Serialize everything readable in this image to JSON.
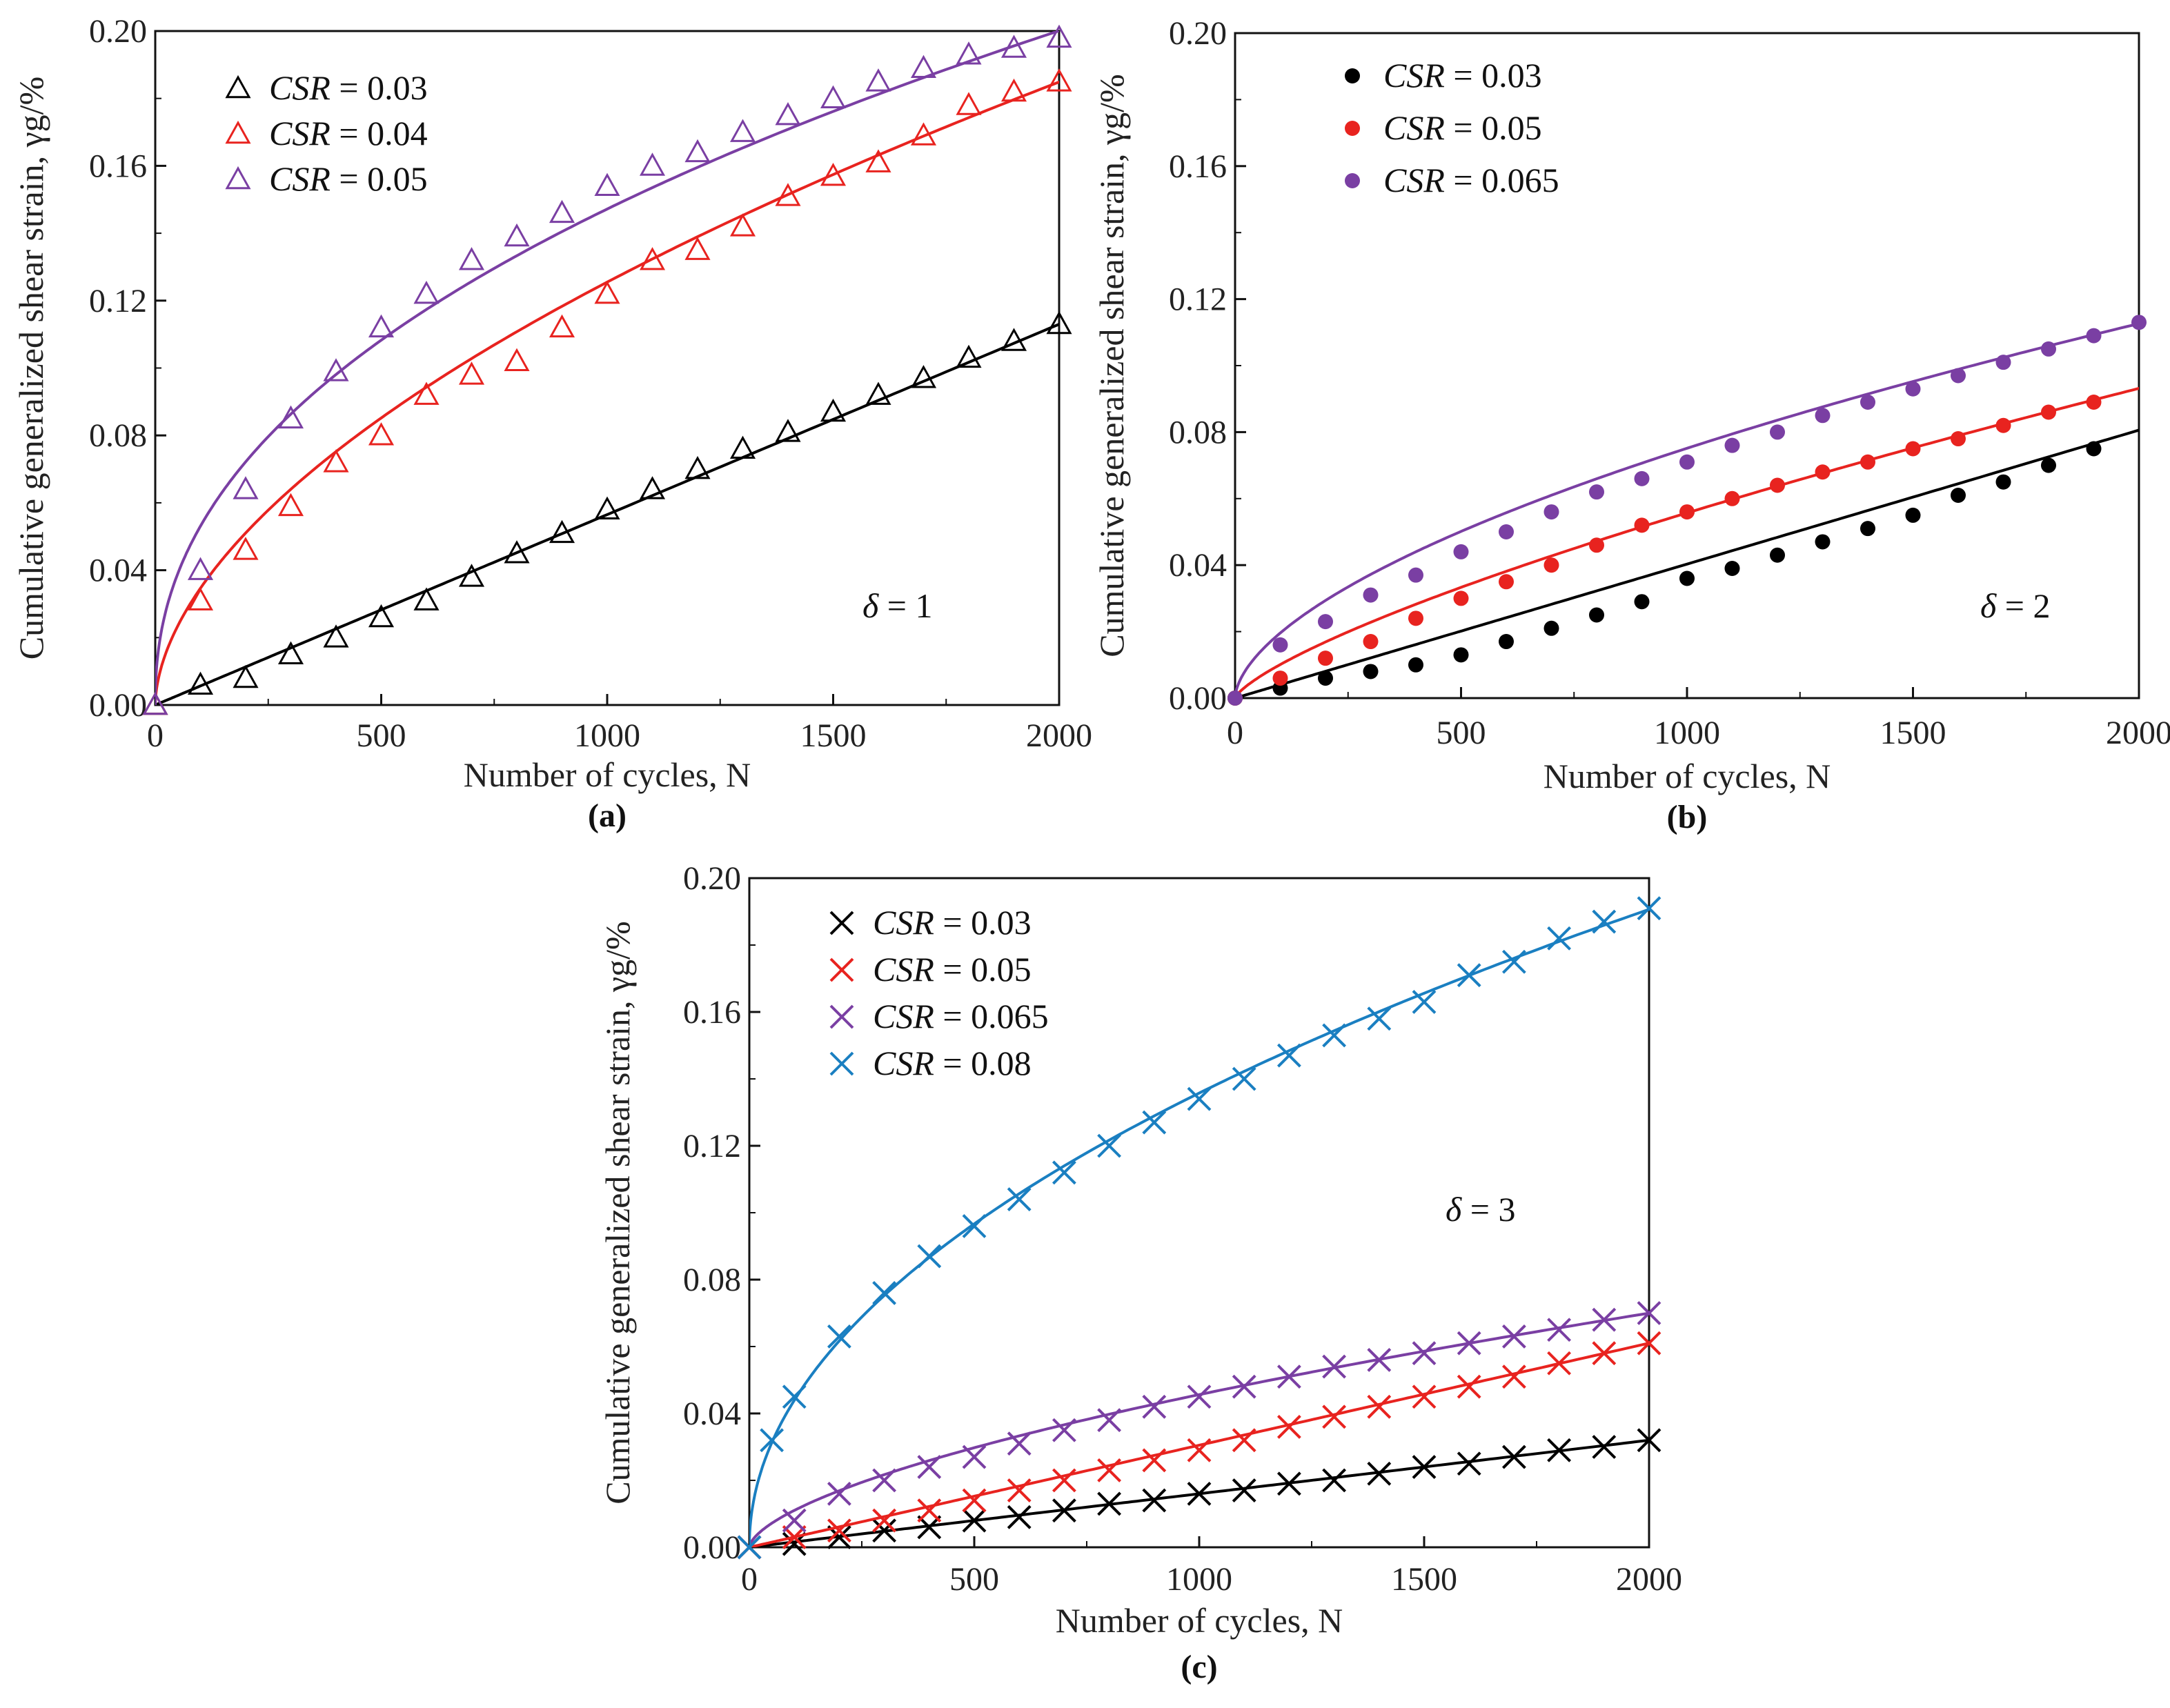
{
  "chart_data": [
    {
      "type": "scatter",
      "panel": "(a)",
      "marker": "triangle",
      "xlabel": "Number of cycles, N",
      "ylabel": "Cumulative generalized shear strain, γg/%",
      "xlim": [
        0,
        2000
      ],
      "ylim": [
        0,
        0.2
      ],
      "xticks": [
        "0",
        "500",
        "1000",
        "1500",
        "2000"
      ],
      "yticks": [
        "0.00",
        "0.04",
        "0.08",
        "0.12",
        "0.16",
        "0.20"
      ],
      "annotation": {
        "symbol": "δ",
        "text": " = 1"
      },
      "legend_position": "top-left",
      "series": [
        {
          "name": "CSR = 0.03",
          "label_var": "CSR",
          "label_val": " = 0.03",
          "color": "#000000",
          "x": [
            0,
            100,
            200,
            300,
            400,
            500,
            600,
            700,
            800,
            900,
            1000,
            1100,
            1200,
            1300,
            1400,
            1500,
            1600,
            1700,
            1800,
            1900,
            2000
          ],
          "y": [
            0.0,
            0.006,
            0.008,
            0.015,
            0.02,
            0.026,
            0.031,
            0.038,
            0.045,
            0.051,
            0.058,
            0.064,
            0.07,
            0.076,
            0.081,
            0.087,
            0.092,
            0.097,
            0.103,
            0.108,
            0.113
          ],
          "fit": [
            0,
            5.65e-05,
            1.0
          ]
        },
        {
          "name": "CSR = 0.04",
          "label_var": "CSR",
          "label_val": " = 0.04",
          "color": "#e8231f",
          "x": [
            0,
            100,
            200,
            300,
            400,
            500,
            600,
            700,
            800,
            900,
            1000,
            1100,
            1200,
            1300,
            1400,
            1500,
            1600,
            1700,
            1800,
            1900,
            2000
          ],
          "y": [
            0.0,
            0.031,
            0.046,
            0.059,
            0.072,
            0.08,
            0.092,
            0.098,
            0.102,
            0.112,
            0.122,
            0.132,
            0.135,
            0.142,
            0.151,
            0.157,
            0.161,
            0.169,
            0.178,
            0.182,
            0.185
          ],
          "fit": [
            0,
            0.00264,
            0.559
          ]
        },
        {
          "name": "CSR = 0.05",
          "label_var": "CSR",
          "label_val": " = 0.05",
          "color": "#7a3fa3",
          "x": [
            0,
            100,
            200,
            300,
            400,
            500,
            600,
            700,
            800,
            900,
            1000,
            1100,
            1200,
            1300,
            1400,
            1500,
            1600,
            1700,
            1800,
            1900,
            2000
          ],
          "y": [
            0.0,
            0.04,
            0.064,
            0.085,
            0.099,
            0.112,
            0.122,
            0.132,
            0.139,
            0.146,
            0.154,
            0.16,
            0.164,
            0.17,
            0.175,
            0.18,
            0.185,
            0.189,
            0.193,
            0.195,
            0.198
          ],
          "fit": [
            0,
            0.0069,
            0.443
          ]
        }
      ]
    },
    {
      "type": "scatter",
      "panel": "(b)",
      "marker": "circle",
      "xlabel": "Number of cycles, N",
      "ylabel": "Cumulative generalized shear strain, γg/%",
      "xlim": [
        0,
        2000
      ],
      "ylim": [
        0,
        0.2
      ],
      "xticks": [
        "0",
        "500",
        "1000",
        "1500",
        "2000"
      ],
      "yticks": [
        "0.00",
        "0.04",
        "0.08",
        "0.12",
        "0.16",
        "0.20"
      ],
      "annotation": {
        "symbol": "δ",
        "text": " = 2"
      },
      "legend_position": "top-left",
      "series": [
        {
          "name": "CSR = 0.03",
          "label_var": "CSR",
          "label_val": " = 0.03",
          "color": "#000000",
          "x": [
            0,
            100,
            200,
            300,
            400,
            500,
            600,
            700,
            800,
            900,
            1000,
            1100,
            1200,
            1300,
            1400,
            1500,
            1600,
            1700,
            1800,
            1900
          ],
          "y": [
            0.0,
            0.003,
            0.006,
            0.008,
            0.01,
            0.013,
            0.017,
            0.021,
            0.025,
            0.029,
            0.036,
            0.039,
            0.043,
            0.047,
            0.051,
            0.055,
            0.061,
            0.065,
            0.07,
            0.075
          ],
          "fit": [
            0,
            4.03e-05,
            1.0
          ]
        },
        {
          "name": "CSR = 0.05",
          "label_var": "CSR",
          "label_val": " = 0.05",
          "color": "#e8231f",
          "x": [
            0,
            100,
            200,
            300,
            400,
            500,
            600,
            700,
            800,
            900,
            1000,
            1100,
            1200,
            1300,
            1400,
            1500,
            1600,
            1700,
            1800,
            1900
          ],
          "y": [
            0.0,
            0.006,
            0.012,
            0.017,
            0.024,
            0.03,
            0.035,
            0.04,
            0.046,
            0.052,
            0.056,
            0.06,
            0.064,
            0.068,
            0.071,
            0.075,
            0.078,
            0.082,
            0.086,
            0.089
          ],
          "fit": [
            0,
            0.000331,
            0.742
          ]
        },
        {
          "name": "CSR = 0.065",
          "label_var": "CSR",
          "label_val": " = 0.065",
          "color": "#7a3fa3",
          "x": [
            0,
            100,
            200,
            300,
            400,
            500,
            600,
            700,
            800,
            900,
            1000,
            1100,
            1200,
            1300,
            1400,
            1500,
            1600,
            1700,
            1800,
            1900,
            2000
          ],
          "y": [
            0.0,
            0.016,
            0.023,
            0.031,
            0.037,
            0.044,
            0.05,
            0.056,
            0.062,
            0.066,
            0.071,
            0.076,
            0.08,
            0.085,
            0.089,
            0.093,
            0.097,
            0.101,
            0.105,
            0.109,
            0.113
          ],
          "fit": [
            0,
            0.00133,
            0.584
          ]
        }
      ]
    },
    {
      "type": "scatter",
      "panel": "(c)",
      "marker": "cross",
      "xlabel": "Number of cycles, N",
      "ylabel": "Cumulative generalized shear strain, γg/%",
      "xlim": [
        0,
        2000
      ],
      "ylim": [
        0,
        0.2
      ],
      "xticks": [
        "0",
        "500",
        "1000",
        "1500",
        "2000"
      ],
      "yticks": [
        "0.00",
        "0.04",
        "0.08",
        "0.12",
        "0.16",
        "0.20"
      ],
      "annotation": {
        "symbol": "δ",
        "text": " = 3"
      },
      "legend_position": "top-left",
      "series": [
        {
          "name": "CSR = 0.03",
          "label_var": "CSR",
          "label_val": " = 0.03",
          "color": "#000000",
          "x": [
            0,
            100,
            200,
            300,
            400,
            500,
            600,
            700,
            800,
            900,
            1000,
            1100,
            1200,
            1300,
            1400,
            1500,
            1600,
            1700,
            1800,
            1900,
            2000
          ],
          "y": [
            0.0,
            0.001,
            0.003,
            0.005,
            0.006,
            0.008,
            0.009,
            0.011,
            0.013,
            0.014,
            0.016,
            0.017,
            0.019,
            0.02,
            0.022,
            0.024,
            0.025,
            0.027,
            0.029,
            0.03,
            0.032
          ],
          "fit": [
            0,
            1.6e-05,
            1.0
          ]
        },
        {
          "name": "CSR = 0.05",
          "label_var": "CSR",
          "label_val": " = 0.05",
          "color": "#e8231f",
          "x": [
            0,
            100,
            200,
            300,
            400,
            500,
            600,
            700,
            800,
            900,
            1000,
            1100,
            1200,
            1300,
            1400,
            1500,
            1600,
            1700,
            1800,
            1900,
            2000
          ],
          "y": [
            0.0,
            0.003,
            0.005,
            0.008,
            0.011,
            0.014,
            0.017,
            0.02,
            0.023,
            0.026,
            0.029,
            0.032,
            0.036,
            0.039,
            0.042,
            0.045,
            0.048,
            0.051,
            0.055,
            0.058,
            0.061
          ],
          "fit": [
            0,
            3.05e-05,
            1.0
          ]
        },
        {
          "name": "CSR = 0.065",
          "label_var": "CSR",
          "label_val": " = 0.065",
          "color": "#7a3fa3",
          "x": [
            0,
            100,
            200,
            300,
            400,
            500,
            600,
            700,
            800,
            900,
            1000,
            1100,
            1200,
            1300,
            1400,
            1500,
            1600,
            1700,
            1800,
            1900,
            2000
          ],
          "y": [
            0.0,
            0.008,
            0.016,
            0.02,
            0.024,
            0.027,
            0.031,
            0.035,
            0.038,
            0.042,
            0.045,
            0.048,
            0.051,
            0.054,
            0.056,
            0.058,
            0.061,
            0.063,
            0.065,
            0.068,
            0.07
          ],
          "fit": [
            0,
            0.000643,
            0.617
          ]
        },
        {
          "name": "CSR = 0.08",
          "label_var": "CSR",
          "label_val": " = 0.08",
          "color": "#1a7fc1",
          "x": [
            0,
            50,
            100,
            200,
            300,
            400,
            500,
            600,
            700,
            800,
            900,
            1000,
            1100,
            1200,
            1300,
            1400,
            1500,
            1600,
            1700,
            1800,
            1900,
            2000
          ],
          "y": [
            0.0,
            0.032,
            0.045,
            0.063,
            0.076,
            0.087,
            0.096,
            0.104,
            0.112,
            0.12,
            0.127,
            0.134,
            0.14,
            0.147,
            0.153,
            0.158,
            0.163,
            0.171,
            0.175,
            0.182,
            0.187,
            0.191
          ],
          "fit": [
            0,
            0.0046,
            0.49
          ]
        }
      ]
    }
  ]
}
